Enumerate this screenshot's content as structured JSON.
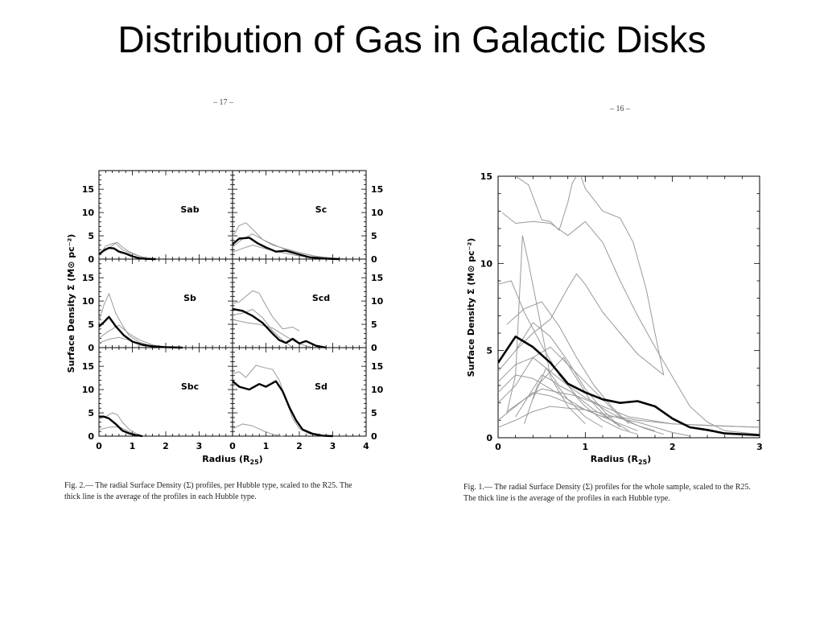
{
  "slide": {
    "title": "Distribution of Gas in Galactic Disks",
    "left_page_number": "– 17 –",
    "right_page_number": "– 16 –"
  },
  "captions": {
    "left_line1": "Fig. 2.— The radial Surface Density (Σ) profiles, per Hubble type, scaled to the R25. The",
    "left_line2": "thick line is the average of the profiles in each Hubble type.",
    "right_line1": "Fig. 1.— The radial Surface Density (Σ) profiles for the whole sample, scaled to the R25.",
    "right_line2": "The thick line is the average of the profiles in each Hubble type."
  },
  "colors": {
    "thin_profile": "#9a9a9a",
    "average": "#000000",
    "frame": "#000000"
  },
  "chart_data": [
    {
      "type": "line",
      "figure": "Fig. 2",
      "xlabel": "Radius (R25)",
      "ylabel": "Surface Density Σ (M⊙ pc⁻²)",
      "ylim": [
        0,
        19
      ],
      "y_ticks": [
        "0",
        "5",
        "10",
        "15"
      ],
      "left_column_x_ticks": [
        "0",
        "1",
        "2",
        "3"
      ],
      "right_column_x_ticks": [
        "0",
        "1",
        "2",
        "3",
        "4"
      ],
      "left_column_xlim": [
        0,
        4
      ],
      "right_column_xlim": [
        0,
        4
      ],
      "panels": [
        {
          "label": "Sab",
          "average": {
            "x": [
              0,
              0.15,
              0.3,
              0.45,
              0.6,
              0.8,
              1.0,
              1.2,
              1.4,
              1.7
            ],
            "y": [
              1.0,
              1.9,
              2.4,
              2.3,
              1.6,
              1.2,
              0.6,
              0.2,
              0.05,
              0.0
            ]
          },
          "thin": [
            {
              "x": [
                0,
                0.2,
                0.4,
                0.55,
                0.7,
                0.9,
                1.1,
                1.3,
                1.6
              ],
              "y": [
                0.6,
                2.8,
                3.3,
                3.6,
                2.6,
                1.6,
                1.0,
                0.4,
                0.0
              ]
            },
            {
              "x": [
                0,
                0.25,
                0.5,
                0.7,
                0.9,
                1.1,
                1.4,
                1.7
              ],
              "y": [
                0.9,
                2.2,
                3.4,
                2.0,
                1.4,
                0.9,
                0.3,
                0.0
              ]
            }
          ]
        },
        {
          "label": "Sc",
          "average": {
            "x": [
              0,
              0.2,
              0.5,
              0.75,
              1.0,
              1.3,
              1.6,
              1.9,
              2.3,
              2.8,
              3.2
            ],
            "y": [
              3.2,
              4.4,
              4.6,
              3.4,
              2.5,
              1.6,
              1.8,
              1.2,
              0.4,
              0.1,
              0.0
            ]
          },
          "thin": [
            {
              "x": [
                0,
                0.2,
                0.4,
                0.6,
                0.9,
                1.2,
                1.6,
                2.0,
                2.4,
                2.8,
                3.2
              ],
              "y": [
                4.8,
                7.2,
                7.8,
                6.4,
                4.2,
                3.0,
                2.2,
                1.4,
                0.7,
                0.3,
                0.0
              ]
            },
            {
              "x": [
                0,
                0.3,
                0.6,
                0.9,
                1.2,
                1.6,
                2.0,
                2.5,
                3.0,
                3.5
              ],
              "y": [
                2.6,
                4.3,
                5.4,
                4.2,
                3.2,
                2.0,
                1.4,
                0.6,
                0.2,
                0.0
              ]
            },
            {
              "x": [
                0,
                0.3,
                0.6,
                1.0,
                1.4,
                1.9,
                2.4,
                3.0
              ],
              "y": [
                1.5,
                2.3,
                3.0,
                2.2,
                1.5,
                0.8,
                0.3,
                0.0
              ]
            }
          ]
        },
        {
          "label": "Sb",
          "average": {
            "x": [
              0,
              0.15,
              0.3,
              0.5,
              0.75,
              1.0,
              1.3,
              1.6,
              2.0,
              2.5
            ],
            "y": [
              4.5,
              5.5,
              6.6,
              4.6,
              2.6,
              1.3,
              0.6,
              0.3,
              0.1,
              0.0
            ]
          },
          "thin": [
            {
              "x": [
                0,
                0.15,
                0.3,
                0.5,
                0.7,
                0.9,
                1.2,
                1.5,
                1.8
              ],
              "y": [
                5.6,
                9.2,
                11.6,
                7.4,
                4.8,
                2.6,
                1.2,
                0.5,
                0.0
              ]
            },
            {
              "x": [
                0,
                0.3,
                0.6,
                0.9,
                1.2,
                1.6,
                2.0
              ],
              "y": [
                2.0,
                3.6,
                4.8,
                3.0,
                1.7,
                0.6,
                0.0
              ]
            },
            {
              "x": [
                0,
                0.3,
                0.6,
                0.9,
                1.3,
                1.7
              ],
              "y": [
                1.0,
                1.8,
                2.2,
                1.6,
                0.8,
                0.0
              ]
            }
          ]
        },
        {
          "label": "Scd",
          "average": {
            "x": [
              0,
              0.3,
              0.6,
              0.9,
              1.2,
              1.4,
              1.6,
              1.8,
              2.0,
              2.2,
              2.5,
              2.8
            ],
            "y": [
              8.3,
              7.9,
              6.8,
              5.3,
              3.0,
              1.6,
              1.0,
              1.9,
              0.9,
              1.4,
              0.4,
              0.0
            ]
          },
          "thin": [
            {
              "x": [
                0,
                0.2,
                0.4,
                0.6,
                0.8,
                1.0,
                1.2,
                1.5,
                1.8,
                2.0
              ],
              "y": [
                9.5,
                9.8,
                11.0,
                12.2,
                11.7,
                9.0,
                6.6,
                4.0,
                4.4,
                3.6
              ]
            },
            {
              "x": [
                0,
                0.3,
                0.6,
                0.9,
                1.2,
                1.5,
                1.8
              ],
              "y": [
                7.0,
                7.4,
                8.2,
                6.4,
                3.6,
                1.6,
                0.0
              ]
            },
            {
              "x": [
                0,
                0.4,
                0.8,
                1.2,
                1.6,
                2.0,
                2.4
              ],
              "y": [
                6.0,
                5.4,
                5.0,
                4.2,
                2.4,
                0.8,
                0.0
              ]
            }
          ]
        },
        {
          "label": "Sbc",
          "average": {
            "x": [
              0,
              0.15,
              0.3,
              0.5,
              0.7,
              0.9,
              1.1,
              1.3
            ],
            "y": [
              4.2,
              4.2,
              3.8,
              2.6,
              1.2,
              0.6,
              0.2,
              0.0
            ]
          },
          "thin": [
            {
              "x": [
                0,
                0.2,
                0.4,
                0.55,
                0.7,
                0.9,
                1.1,
                1.3
              ],
              "y": [
                3.6,
                4.2,
                5.0,
                4.6,
                3.0,
                1.5,
                0.6,
                0.0
              ]
            },
            {
              "x": [
                0,
                0.3,
                0.6,
                0.9,
                1.2
              ],
              "y": [
                1.4,
                1.9,
                2.0,
                1.0,
                0.0
              ]
            }
          ]
        },
        {
          "label": "Sd",
          "average": {
            "x": [
              0,
              0.2,
              0.5,
              0.8,
              1.0,
              1.3,
              1.5,
              1.7,
              1.9,
              2.1,
              2.4,
              2.7,
              3.0
            ],
            "y": [
              11.8,
              10.6,
              10.0,
              11.2,
              10.6,
              11.8,
              9.6,
              6.2,
              3.4,
              1.4,
              0.5,
              0.1,
              0.0
            ]
          },
          "thin": [
            {
              "x": [
                0,
                0.2,
                0.4,
                0.7,
                0.9,
                1.2,
                1.4,
                1.6,
                1.8,
                2.0,
                2.3,
                2.7
              ],
              "y": [
                13.4,
                13.8,
                12.6,
                15.2,
                14.8,
                14.3,
                12.0,
                7.8,
                3.8,
                1.6,
                0.5,
                0.0
              ]
            },
            {
              "x": [
                0,
                0.3,
                0.6,
                0.9,
                1.2,
                1.5
              ],
              "y": [
                1.6,
                2.6,
                2.2,
                1.2,
                0.4,
                0.0
              ]
            }
          ]
        }
      ]
    },
    {
      "type": "line",
      "figure": "Fig. 1",
      "xlabel": "Radius (R25)",
      "ylabel": "Surface Density Σ (M⊙ pc⁻²)",
      "xlim": [
        0,
        3
      ],
      "ylim": [
        0,
        15
      ],
      "x_ticks": [
        "0",
        "1",
        "2",
        "3"
      ],
      "y_ticks": [
        "0",
        "5",
        "10",
        "15"
      ],
      "average": {
        "x": [
          0,
          0.2,
          0.4,
          0.6,
          0.8,
          1.0,
          1.2,
          1.4,
          1.6,
          1.8,
          2.0,
          2.2,
          2.4,
          2.6,
          2.8,
          3.0
        ],
        "y": [
          4.3,
          5.8,
          5.2,
          4.3,
          3.1,
          2.6,
          2.2,
          2.0,
          2.1,
          1.8,
          1.1,
          0.6,
          0.45,
          0.25,
          0.2,
          0.15
        ]
      },
      "thin": [
        {
          "x": [
            0.05,
            0.2,
            0.4,
            0.6,
            0.8,
            1.0,
            1.2,
            1.4,
            1.6,
            1.8,
            2.0,
            2.2,
            2.4,
            2.6,
            3.0
          ],
          "y": [
            12.9,
            12.3,
            12.4,
            12.3,
            11.6,
            12.4,
            11.2,
            9.0,
            7.0,
            5.2,
            3.5,
            1.8,
            0.9,
            0.4,
            0.2
          ]
        },
        {
          "x": [
            0.2,
            0.35,
            0.5,
            0.6,
            0.7,
            0.8,
            0.85,
            0.9
          ],
          "y": [
            15.0,
            14.5,
            12.5,
            12.4,
            11.9,
            13.5,
            14.6,
            15.0
          ]
        },
        {
          "x": [
            0.95,
            1.0,
            1.2,
            1.4,
            1.55,
            1.7,
            1.8,
            1.9
          ],
          "y": [
            15.0,
            14.3,
            13.0,
            12.6,
            11.2,
            8.5,
            6.0,
            3.6
          ]
        },
        {
          "x": [
            0,
            0.2,
            0.4,
            0.6,
            0.8,
            0.9,
            1.0,
            1.2,
            1.4,
            1.6,
            1.8,
            1.9
          ],
          "y": [
            3.8,
            5.0,
            6.0,
            6.8,
            8.6,
            9.4,
            8.8,
            7.2,
            6.0,
            4.8,
            4.0,
            3.6
          ]
        },
        {
          "x": [
            0.1,
            0.2,
            0.28,
            0.35,
            0.5,
            0.6,
            0.8,
            1.0
          ],
          "y": [
            1.4,
            3.6,
            11.6,
            10.0,
            6.2,
            3.5,
            1.8,
            0.8
          ]
        },
        {
          "x": [
            0,
            0.2,
            0.4,
            0.6,
            0.8,
            1.0,
            1.2,
            1.4,
            1.6
          ],
          "y": [
            2.6,
            3.6,
            3.4,
            2.8,
            2.2,
            1.6,
            1.2,
            0.8,
            0.4
          ]
        },
        {
          "x": [
            0,
            0.15,
            0.3,
            0.5,
            0.7,
            0.9,
            1.1,
            1.3,
            1.5
          ],
          "y": [
            8.8,
            9.0,
            7.2,
            5.3,
            3.6,
            2.4,
            1.6,
            1.0,
            0.4
          ]
        },
        {
          "x": [
            0,
            0.2,
            0.4,
            0.6,
            0.8,
            1.0,
            1.2,
            1.4,
            1.6,
            2.0,
            2.4,
            3.0
          ],
          "y": [
            1.0,
            1.8,
            2.6,
            2.4,
            2.0,
            1.6,
            1.2,
            1.2,
            1.0,
            0.8,
            0.7,
            0.6
          ]
        },
        {
          "x": [
            0,
            0.2,
            0.4,
            0.6,
            0.8,
            1.0,
            1.2,
            1.5,
            2.0,
            3.0
          ],
          "y": [
            3.2,
            4.2,
            4.6,
            3.8,
            3.0,
            2.3,
            1.8,
            1.2,
            0.8,
            0.6
          ]
        },
        {
          "x": [
            0,
            0.2,
            0.4,
            0.6,
            0.8,
            1.0,
            1.2,
            1.4,
            1.6,
            1.8
          ],
          "y": [
            2.0,
            3.0,
            4.6,
            5.2,
            4.2,
            3.2,
            2.2,
            1.2,
            0.7,
            0.4
          ]
        },
        {
          "x": [
            0.1,
            0.3,
            0.5,
            0.7,
            0.9,
            1.1,
            1.3,
            1.5
          ],
          "y": [
            6.5,
            7.4,
            7.8,
            6.4,
            4.6,
            3.0,
            1.8,
            0.8
          ]
        },
        {
          "x": [
            0.2,
            0.4,
            0.6,
            0.8,
            1.0,
            1.2,
            1.4
          ],
          "y": [
            5.0,
            6.6,
            5.8,
            4.4,
            2.8,
            1.6,
            0.6
          ]
        },
        {
          "x": [
            0.2,
            0.35,
            0.5,
            0.65,
            0.8,
            1.0,
            1.2
          ],
          "y": [
            1.2,
            2.4,
            3.6,
            3.2,
            2.2,
            1.2,
            0.6
          ]
        },
        {
          "x": [
            0.3,
            0.45,
            0.6,
            0.75,
            0.9,
            1.05,
            1.2,
            1.35
          ],
          "y": [
            0.8,
            3.0,
            3.8,
            4.6,
            3.4,
            2.2,
            1.4,
            0.8
          ]
        },
        {
          "x": [
            0,
            0.2,
            0.4,
            0.6,
            0.8,
            1.0,
            1.2,
            1.4,
            1.6,
            1.8,
            2.0,
            2.2
          ],
          "y": [
            0.6,
            1.0,
            1.5,
            1.8,
            1.7,
            1.6,
            1.4,
            1.1,
            0.9,
            0.6,
            0.3,
            0.1
          ]
        },
        {
          "x": [
            0.4,
            0.55,
            0.7,
            0.85,
            1.0,
            1.2,
            1.4,
            1.6
          ],
          "y": [
            2.2,
            4.0,
            3.0,
            2.6,
            1.8,
            1.0,
            0.5,
            0.2
          ]
        },
        {
          "x": [
            0.1,
            0.3,
            0.5,
            0.7,
            0.9,
            1.1,
            1.3,
            1.5,
            1.7,
            1.9
          ],
          "y": [
            1.5,
            2.2,
            2.8,
            2.6,
            2.4,
            2.0,
            1.4,
            0.9,
            0.5,
            0.2
          ]
        }
      ]
    }
  ]
}
